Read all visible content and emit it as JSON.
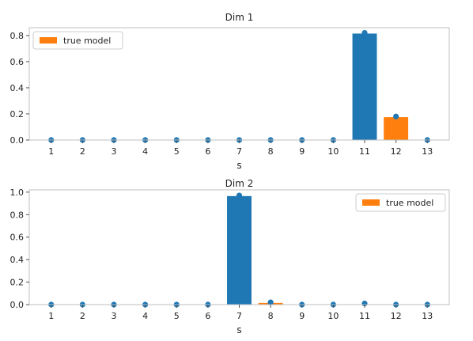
{
  "figure": {
    "suptitle": "",
    "colors": {
      "blue": "#1f77b4",
      "orange": "#ff7f0e",
      "frame": "#bfbfbf"
    }
  },
  "chart_data": [
    {
      "type": "bar",
      "title": "Dim 1",
      "xlabel": "s",
      "ylabel": "",
      "categories": [
        "1",
        "2",
        "3",
        "4",
        "5",
        "6",
        "7",
        "8",
        "9",
        "10",
        "11",
        "12",
        "13"
      ],
      "ylim": [
        0,
        0.86
      ],
      "yticks": [
        "0.0",
        "0.2",
        "0.4",
        "0.6",
        "0.8"
      ],
      "yticks_values": [
        0,
        0.2,
        0.4,
        0.6,
        0.8
      ],
      "legend": {
        "label": "true model",
        "placement": "top-left"
      },
      "series": [
        {
          "name": "",
          "kind": "bar",
          "colors": [
            "#1f77b4",
            "#1f77b4",
            "#1f77b4",
            "#1f77b4",
            "#1f77b4",
            "#1f77b4",
            "#1f77b4",
            "#1f77b4",
            "#1f77b4",
            "#1f77b4",
            "#1f77b4",
            "#ff7f0e",
            "#1f77b4"
          ],
          "values": [
            0,
            0,
            0,
            0,
            0,
            0,
            0,
            0,
            0,
            0,
            0.815,
            0.175,
            0
          ]
        },
        {
          "name": "",
          "kind": "point",
          "values": [
            0,
            0,
            0,
            0,
            0,
            0,
            0,
            0,
            0,
            0,
            0.82,
            0.18,
            0
          ]
        }
      ],
      "grid": false
    },
    {
      "type": "bar",
      "title": "Dim 2",
      "xlabel": "s",
      "ylabel": "",
      "categories": [
        "1",
        "2",
        "3",
        "4",
        "5",
        "6",
        "7",
        "8",
        "9",
        "10",
        "11",
        "12",
        "13"
      ],
      "ylim": [
        0,
        1.02
      ],
      "yticks": [
        "0.0",
        "0.2",
        "0.4",
        "0.6",
        "0.8",
        "1.0"
      ],
      "yticks_values": [
        0,
        0.2,
        0.4,
        0.6,
        0.8,
        1.0
      ],
      "legend": {
        "label": "true model",
        "placement": "top-right"
      },
      "series": [
        {
          "name": "",
          "kind": "bar",
          "colors": [
            "#1f77b4",
            "#1f77b4",
            "#1f77b4",
            "#1f77b4",
            "#1f77b4",
            "#1f77b4",
            "#1f77b4",
            "#ff7f0e",
            "#1f77b4",
            "#1f77b4",
            "#1f77b4",
            "#1f77b4",
            "#1f77b4"
          ],
          "values": [
            0,
            0,
            0,
            0,
            0,
            0,
            0.965,
            0.015,
            0,
            0,
            0,
            0,
            0
          ]
        },
        {
          "name": "",
          "kind": "point",
          "values": [
            0,
            0,
            0,
            0,
            0,
            0,
            0.97,
            0.02,
            0,
            0,
            0.01,
            0,
            0
          ]
        }
      ],
      "grid": false
    }
  ]
}
